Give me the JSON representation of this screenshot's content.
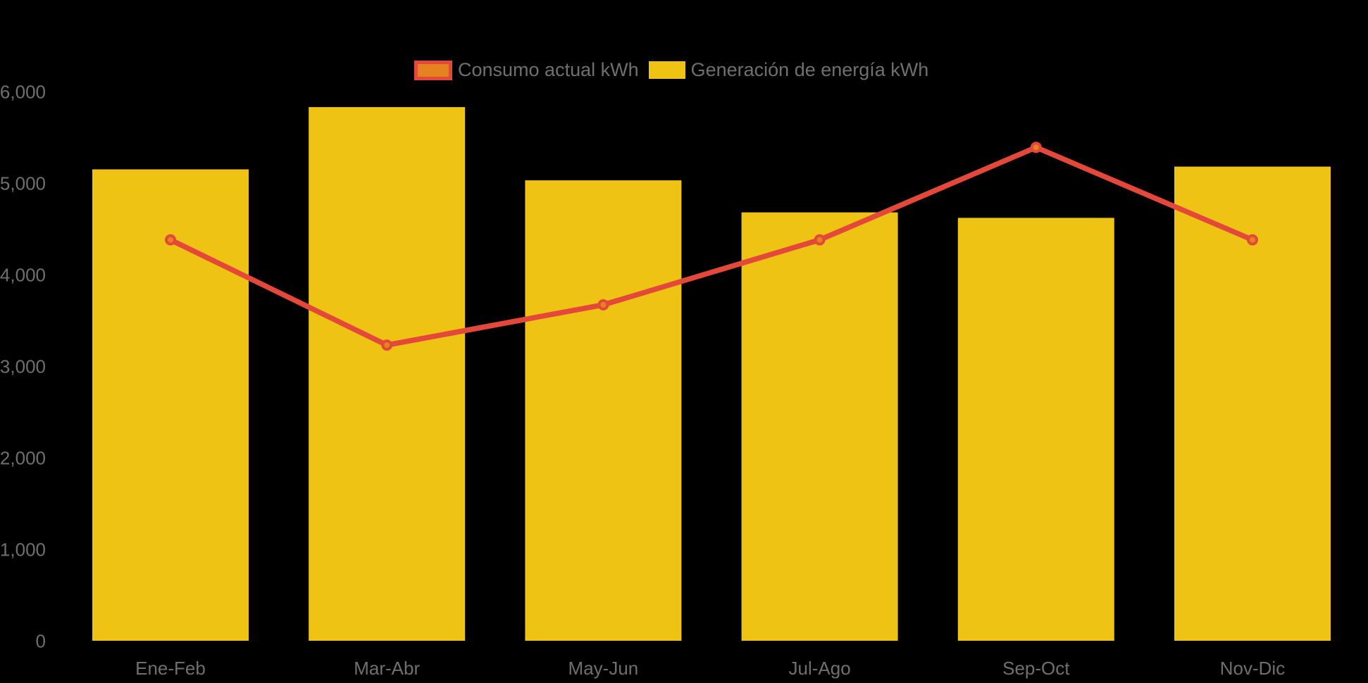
{
  "chart_data": {
    "type": "bar+line combo",
    "title": "",
    "categories": [
      "Ene-Feb",
      "Mar-Abr",
      "May-Jun",
      "Jul-Ago",
      "Sep-Oct",
      "Nov-Dic"
    ],
    "series": [
      {
        "name": "Consumo actual kWh",
        "type": "line",
        "values": [
          4380,
          3230,
          3670,
          4380,
          5390,
          4380
        ]
      },
      {
        "name": "Generación de energía kWh",
        "type": "bar",
        "values": [
          5150,
          5830,
          5030,
          4680,
          4620,
          5180
        ]
      }
    ],
    "xlabel": "",
    "ylabel": "",
    "ylim": [
      0,
      6000
    ],
    "yticks": [
      0,
      1000,
      2000,
      3000,
      4000,
      5000,
      6000
    ],
    "ytick_labels": [
      "0",
      "1,000",
      "2,000",
      "3,000",
      "4,000",
      "5,000",
      "6,000"
    ],
    "grid": false,
    "legend_position": "top",
    "colors": {
      "bar": "#EFC313",
      "line": "#E4483A",
      "marker": "#E58320",
      "text": "#6E6F71",
      "background": "#000000"
    }
  }
}
